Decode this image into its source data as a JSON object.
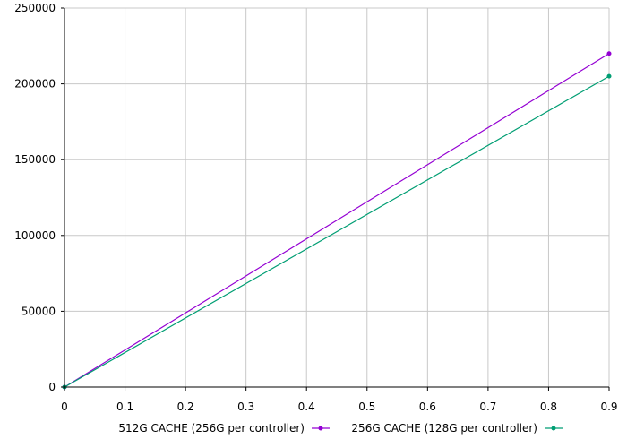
{
  "chart_data": {
    "type": "line",
    "title": "",
    "xlabel": "",
    "ylabel": "",
    "xlim": [
      0,
      0.9
    ],
    "ylim": [
      0,
      250000
    ],
    "x_ticks": [
      "0",
      "0.1",
      "0.2",
      "0.3",
      "0.4",
      "0.5",
      "0.6",
      "0.7",
      "0.8",
      "0.9"
    ],
    "y_ticks": [
      "0",
      "50000",
      "100000",
      "150000",
      "200000",
      "250000"
    ],
    "grid": true,
    "legend_position": "bottom",
    "series": [
      {
        "name": "512G CACHE (256G per controller)",
        "color": "#9400d3",
        "x": [
          0,
          0.9
        ],
        "y": [
          0,
          220000
        ]
      },
      {
        "name": "256G CACHE (128G per controller)",
        "color": "#009e73",
        "x": [
          0,
          0.9
        ],
        "y": [
          0,
          205000
        ]
      }
    ]
  }
}
